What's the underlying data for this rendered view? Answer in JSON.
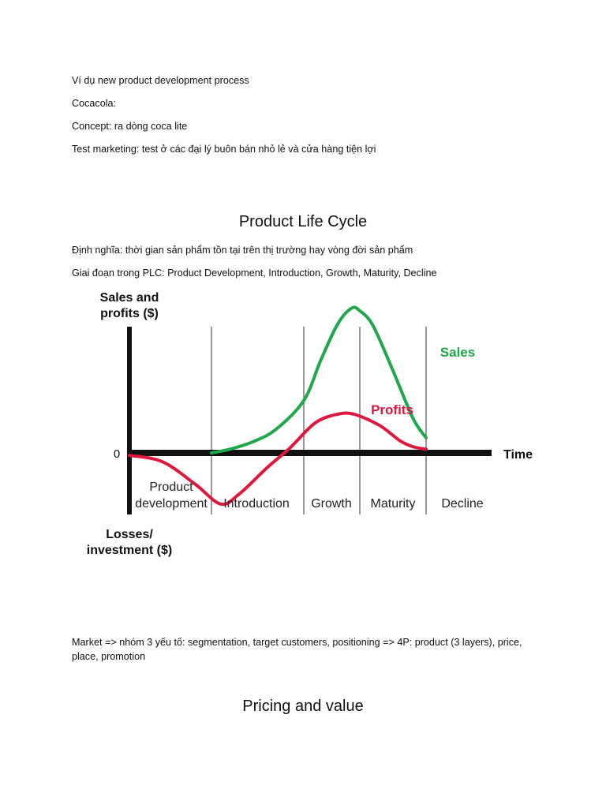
{
  "document": {
    "intro": [
      "Ví dụ new product development process",
      "Cocacola:",
      "Concept: ra dòng coca lite",
      "Test marketing: test ở các đại lý buôn bán nhỏ lẻ và cửa hàng tiện lợi"
    ],
    "plc_heading": "Product Life Cycle",
    "definition": "Định nghĩa: thời gian sản phẩm tồn tại trên thị trường hay vòng đời sản phẩm",
    "stages_line": "Giai đoạn trong PLC: Product Development, Introduction, Growth, Maturity, Decline",
    "market_line": "Market => nhóm 3 yếu tố: segmentation, target customers, positioning => 4P: product (3 layers), price, place, promotion",
    "pricing_heading": "Pricing and value"
  },
  "chart_data": {
    "type": "line",
    "ylabel": [
      "Sales and",
      "profits ($)"
    ],
    "ylabel_negative": [
      "Losses/",
      "investment ($)"
    ],
    "xlabel": "Time",
    "zero_label": "0",
    "stages": [
      {
        "label": [
          "Product",
          "development"
        ]
      },
      {
        "label": [
          "Introduction"
        ]
      },
      {
        "label": [
          "Growth"
        ]
      },
      {
        "label": [
          "Maturity"
        ]
      },
      {
        "label": [
          "Decline"
        ]
      }
    ],
    "series": [
      {
        "name": "Sales",
        "color": "#1fa84a",
        "points": [
          [
            1.0,
            0.0
          ],
          [
            1.2,
            0.03
          ],
          [
            1.45,
            0.09
          ],
          [
            1.7,
            0.19
          ],
          [
            2.0,
            0.42
          ],
          [
            2.3,
            0.74
          ],
          [
            2.6,
            1.03
          ],
          [
            2.85,
            1.16
          ],
          [
            3.0,
            1.14
          ],
          [
            3.2,
            1.02
          ],
          [
            3.5,
            0.66
          ],
          [
            3.8,
            0.28
          ],
          [
            4.0,
            0.12
          ]
        ]
      },
      {
        "name": "Profits",
        "color": "#e0173d",
        "points": [
          [
            0.0,
            -0.02
          ],
          [
            0.4,
            -0.07
          ],
          [
            0.8,
            -0.25
          ],
          [
            1.1,
            -0.41
          ],
          [
            1.3,
            -0.33
          ],
          [
            1.6,
            -0.12
          ],
          [
            1.85,
            0.04
          ],
          [
            2.2,
            0.24
          ],
          [
            2.6,
            0.31
          ],
          [
            2.9,
            0.31
          ],
          [
            3.3,
            0.22
          ],
          [
            3.6,
            0.1
          ],
          [
            3.8,
            0.05
          ],
          [
            4.0,
            0.03
          ]
        ]
      }
    ],
    "colors": {
      "axis": "#111111",
      "divider": "#333333"
    }
  }
}
